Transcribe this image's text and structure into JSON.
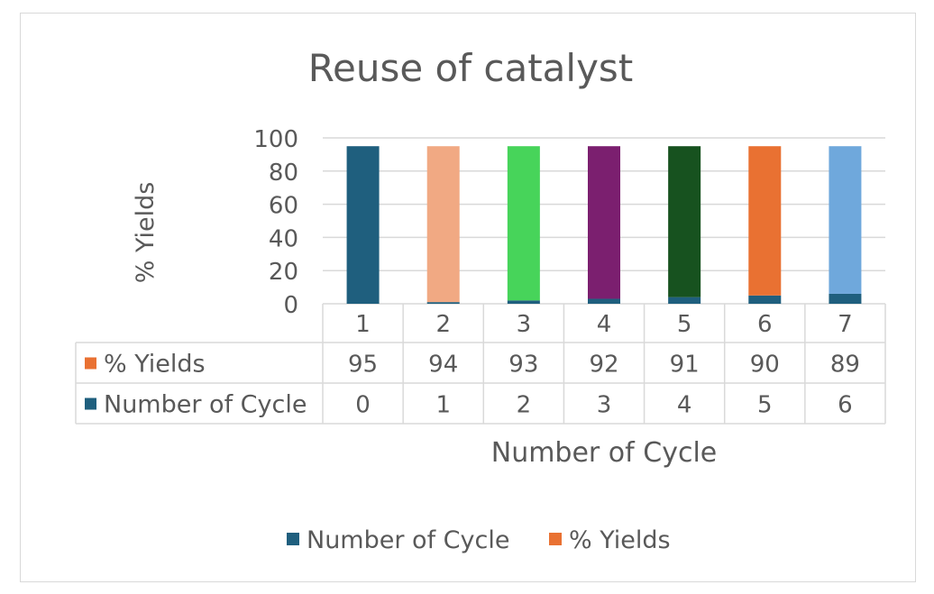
{
  "chart_data": {
    "type": "bar",
    "stacked": true,
    "title": "Reuse of catalyst",
    "xlabel": "Number of Cycle",
    "ylabel": "% Yields",
    "ylim": [
      0,
      100
    ],
    "yticks": [
      "0",
      "20",
      "40",
      "60",
      "80",
      "100"
    ],
    "categories": [
      "1",
      "2",
      "3",
      "4",
      "5",
      "6",
      "7"
    ],
    "series": [
      {
        "name": "Number of Cycle",
        "values": [
          0,
          1,
          2,
          3,
          4,
          5,
          6
        ],
        "color": "#1f5f7e",
        "value_labels": [
          "0",
          "1",
          "2",
          "3",
          "4",
          "5",
          "6"
        ]
      },
      {
        "name": "% Yields",
        "values": [
          95,
          94,
          93,
          92,
          91,
          90,
          89
        ],
        "color": "#e97132",
        "value_labels": [
          "95",
          "94",
          "93",
          "92",
          "91",
          "90",
          "89"
        ]
      }
    ],
    "point_colors": [
      "#1f5f7e",
      "#f1a983",
      "#47d45a",
      "#7b1f6f",
      "#17521f",
      "#e97132",
      "#6fa8dc"
    ],
    "data_table_rows": [
      {
        "series_index": 1,
        "label": "% Yields"
      },
      {
        "series_index": 0,
        "label": "Number of Cycle"
      }
    ],
    "legend": {
      "position": "bottom",
      "entries": [
        "Number of Cycle",
        "% Yields"
      ]
    },
    "grid": true
  }
}
